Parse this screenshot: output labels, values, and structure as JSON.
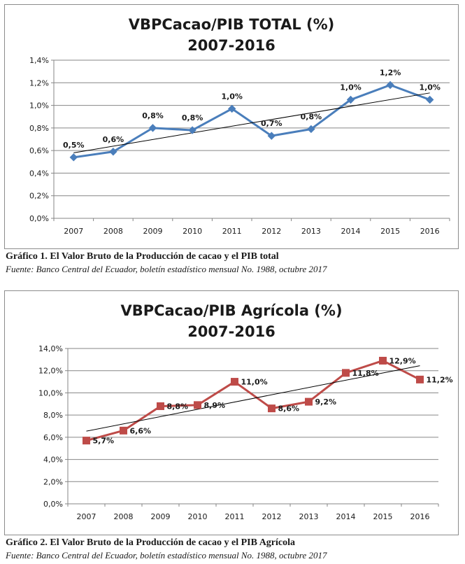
{
  "charts": [
    {
      "title_line1": "VBPCacao/PIB TOTAL (%)",
      "title_line2": "2007-2016",
      "caption_title": "Gráfico 1. El Valor Bruto de la Producción de cacao y el PIB total",
      "caption_source": "Fuente: Banco Central del Ecuador, boletín estadístico mensual No. 1988, octubre 2017"
    },
    {
      "title_line1": "VBPCacao/PIB Agrícola (%)",
      "title_line2": "2007-2016",
      "caption_title": "Gráfico 2. El Valor Bruto de la Producción de cacao y el PIB Agrícola",
      "caption_source": "Fuente: Banco Central del Ecuador, boletín estadístico mensual No. 1988, octubre 2017"
    }
  ],
  "chart_data": [
    {
      "type": "line",
      "title": "VBPCacao/PIB TOTAL (%) 2007-2016",
      "categories": [
        "2007",
        "2008",
        "2009",
        "2010",
        "2011",
        "2012",
        "2013",
        "2014",
        "2015",
        "2016"
      ],
      "values": [
        0.54,
        0.59,
        0.8,
        0.78,
        0.97,
        0.73,
        0.79,
        1.05,
        1.18,
        1.05
      ],
      "data_labels": [
        "0,5%",
        "0,6%",
        "0,8%",
        "0,8%",
        "1,0%",
        "0,7%",
        "0,8%",
        "1,0%",
        "1,2%",
        "1,0%"
      ],
      "trendline": [
        0.58,
        1.11
      ],
      "ylim": [
        0,
        1.4
      ],
      "yticks": [
        0,
        0.2,
        0.4,
        0.6,
        0.8,
        1.0,
        1.2,
        1.4
      ],
      "ytick_labels": [
        "0,0%",
        "0,2%",
        "0,4%",
        "0,6%",
        "0,8%",
        "1,0%",
        "1,2%",
        "1,4%"
      ],
      "grid": true,
      "legend": "none",
      "color": "#4a7ebb",
      "marker": "diamond"
    },
    {
      "type": "line",
      "title": "VBPCacao/PIB Agrícola (%) 2007-2016",
      "categories": [
        "2007",
        "2008",
        "2009",
        "2010",
        "2011",
        "2012",
        "2013",
        "2014",
        "2015",
        "2016"
      ],
      "values": [
        5.7,
        6.6,
        8.8,
        8.9,
        11.0,
        8.6,
        9.2,
        11.8,
        12.9,
        11.2
      ],
      "data_labels": [
        "5,7%",
        "6,6%",
        "8,8%",
        "8,9%",
        "11,0%",
        "8,6%",
        "9,2%",
        "11,8%",
        "12,9%",
        "11,2%"
      ],
      "trendline": [
        6.55,
        12.45
      ],
      "ylim": [
        0,
        14
      ],
      "yticks": [
        0,
        2,
        4,
        6,
        8,
        10,
        12,
        14
      ],
      "ytick_labels": [
        "0,0%",
        "2,0%",
        "4,0%",
        "6,0%",
        "8,0%",
        "10,0%",
        "12,0%",
        "14,0%"
      ],
      "grid": true,
      "legend": "none",
      "color": "#be4b48",
      "marker": "square"
    }
  ]
}
